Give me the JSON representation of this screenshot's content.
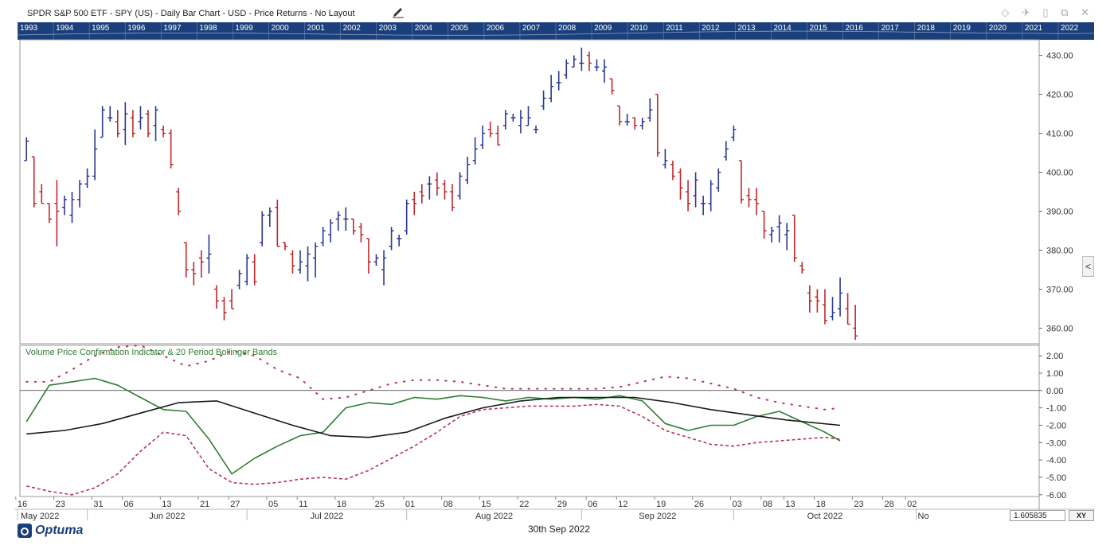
{
  "window": {
    "title": "SPDR S&P 500 ETF - SPY (US) - Daily Bar Chart - USD - Price Returns - No Layout",
    "controls": [
      "◇",
      "✈",
      "▯",
      "⧉",
      "✕"
    ]
  },
  "navigator": {
    "years": [
      "1993",
      "1994",
      "1995",
      "1996",
      "1997",
      "1998",
      "1999",
      "2000",
      "2001",
      "2002",
      "2003",
      "2004",
      "2005",
      "2006",
      "2007",
      "2008",
      "2009",
      "2010",
      "2011",
      "2012",
      "2013",
      "2014",
      "2015",
      "2016",
      "2017",
      "2018",
      "2019",
      "2020",
      "2021",
      "2022"
    ]
  },
  "chart_data": [
    {
      "type": "bar",
      "subtype": "ohlc",
      "title": "SPDR S&P 500 ETF - SPY (US) - Daily Bar Chart - USD - Price Returns - No Layout",
      "colors": {
        "up": "#2b3990",
        "down": "#c0282d"
      },
      "ylim": [
        356,
        434
      ],
      "y_ticks": [
        "430.00",
        "420.00",
        "410.00",
        "400.00",
        "390.00",
        "380.00",
        "370.00",
        "360.00"
      ],
      "y_tick_values": [
        430,
        420,
        410,
        400,
        390,
        380,
        370,
        360
      ],
      "grid": false,
      "bars": [
        [
          403,
          409,
          403,
          408
        ],
        [
          404,
          404,
          391,
          392
        ],
        [
          395,
          397,
          392,
          392
        ],
        [
          392,
          392,
          387,
          388
        ],
        [
          392,
          398,
          381,
          390
        ],
        [
          391,
          394,
          389,
          393
        ],
        [
          389,
          395,
          387,
          393
        ],
        [
          393,
          398,
          391,
          397
        ],
        [
          397,
          401,
          396,
          399
        ],
        [
          399,
          411,
          398,
          406
        ],
        [
          409,
          417,
          409,
          416
        ],
        [
          414,
          417,
          413,
          414
        ],
        [
          413,
          416,
          409,
          410
        ],
        [
          411,
          418,
          407,
          415
        ],
        [
          414,
          416,
          409,
          410
        ],
        [
          413,
          417,
          411,
          414
        ],
        [
          415,
          416,
          409,
          410
        ],
        [
          412,
          417,
          408,
          416
        ],
        [
          411,
          412,
          409,
          410
        ],
        [
          410,
          411,
          401,
          402
        ],
        [
          395,
          396,
          389,
          390
        ],
        [
          382,
          382,
          373,
          375
        ],
        [
          375,
          377,
          371,
          374
        ],
        [
          378,
          380,
          373,
          377
        ],
        [
          378,
          384,
          374,
          379
        ],
        [
          370,
          371,
          365,
          367
        ],
        [
          367,
          368,
          362,
          364
        ],
        [
          367,
          370,
          365,
          365
        ],
        [
          371,
          375,
          370,
          374
        ],
        [
          372,
          379,
          371,
          378
        ],
        [
          377,
          379,
          371,
          372
        ],
        [
          382,
          390,
          381,
          389
        ],
        [
          389,
          391,
          386,
          390
        ],
        [
          391,
          393,
          381,
          381
        ],
        [
          382,
          382,
          380,
          381
        ],
        [
          379,
          380,
          374,
          376
        ],
        [
          375,
          380,
          374,
          377
        ],
        [
          376,
          381,
          372,
          379
        ],
        [
          378,
          382,
          373,
          381
        ],
        [
          382,
          386,
          381,
          385
        ],
        [
          384,
          388,
          382,
          387
        ],
        [
          388,
          390,
          385,
          389
        ],
        [
          388,
          391,
          385,
          388
        ],
        [
          388,
          388,
          384,
          385
        ],
        [
          386,
          387,
          382,
          384
        ],
        [
          383,
          383,
          374,
          377
        ],
        [
          377,
          379,
          376,
          378
        ],
        [
          375,
          380,
          371,
          378
        ],
        [
          381,
          386,
          380,
          385
        ],
        [
          383,
          384,
          381,
          383
        ],
        [
          385,
          393,
          384,
          392
        ],
        [
          393,
          395,
          389,
          392
        ],
        [
          395,
          397,
          392,
          394
        ],
        [
          397,
          399,
          393,
          397
        ],
        [
          398,
          400,
          394,
          396
        ],
        [
          397,
          398,
          393,
          395
        ],
        [
          395,
          397,
          390,
          391
        ],
        [
          394,
          400,
          393,
          399
        ],
        [
          398,
          404,
          397,
          402
        ],
        [
          403,
          409,
          402,
          406
        ],
        [
          407,
          412,
          406,
          410
        ],
        [
          411,
          413,
          409,
          410
        ],
        [
          410,
          412,
          407,
          407
        ],
        [
          412,
          416,
          411,
          415
        ],
        [
          414,
          415,
          413,
          414
        ],
        [
          412,
          416,
          410,
          414
        ],
        [
          412,
          417,
          412,
          414
        ],
        [
          411,
          412,
          410,
          411
        ],
        [
          417,
          421,
          416,
          419
        ],
        [
          419,
          425,
          418,
          422
        ],
        [
          423,
          426,
          421,
          423
        ],
        [
          425,
          429,
          424,
          428
        ],
        [
          427,
          430,
          427,
          429
        ],
        [
          428,
          432,
          426,
          428
        ],
        [
          430,
          431,
          426,
          428
        ],
        [
          427,
          429,
          426,
          427
        ],
        [
          426,
          429,
          423,
          427
        ],
        [
          424,
          424,
          420,
          421
        ],
        [
          417,
          417,
          412,
          413
        ],
        [
          413,
          415,
          412,
          413
        ],
        [
          414,
          414,
          411,
          412
        ],
        [
          412,
          414,
          411,
          413
        ],
        [
          414,
          419,
          413,
          416
        ],
        [
          420,
          420,
          404,
          405
        ],
        [
          402,
          406,
          401,
          403
        ],
        [
          402,
          403,
          398,
          399
        ],
        [
          400,
          401,
          393,
          396
        ],
        [
          395,
          398,
          390,
          392
        ],
        [
          394,
          400,
          391,
          398
        ],
        [
          392,
          394,
          389,
          392
        ],
        [
          392,
          398,
          390,
          397
        ],
        [
          396,
          401,
          395,
          400
        ],
        [
          404,
          408,
          403,
          406
        ],
        [
          409,
          412,
          408,
          411
        ],
        [
          403,
          403,
          392,
          393
        ],
        [
          394,
          396,
          391,
          393
        ],
        [
          393,
          396,
          389,
          392
        ],
        [
          390,
          390,
          383,
          385
        ],
        [
          384,
          386,
          382,
          385
        ],
        [
          386,
          389,
          382,
          387
        ],
        [
          384,
          387,
          380,
          385
        ],
        [
          389,
          389,
          377,
          378
        ],
        [
          376,
          377,
          374,
          375
        ],
        [
          369,
          371,
          364,
          367
        ],
        [
          368,
          370,
          364,
          367
        ],
        [
          366,
          370,
          361,
          362
        ],
        [
          363,
          368,
          362,
          364
        ],
        [
          365,
          373,
          363,
          369
        ],
        [
          365,
          369,
          361,
          361
        ],
        [
          360,
          366,
          357,
          358
        ]
      ]
    },
    {
      "type": "line",
      "title": "Volume Price Confirmation Indicator & 20 Period Bollinger Bands",
      "ylim": [
        -6.1,
        2.6
      ],
      "y_ticks": [
        "2.00",
        "1.00",
        "0.00",
        "-1.00",
        "-2.00",
        "-3.00",
        "-4.00",
        "-5.00",
        "-6.00"
      ],
      "y_tick_values": [
        2,
        1,
        0,
        -1,
        -2,
        -3,
        -4,
        -5,
        -6
      ],
      "series": [
        {
          "color": "#2e7d32",
          "x": [
            0,
            3,
            6,
            9,
            12,
            15,
            18,
            21,
            24,
            27,
            30,
            33,
            36,
            39,
            42,
            45,
            48,
            51,
            54,
            57,
            60,
            63,
            66,
            69,
            72,
            75,
            78,
            81,
            84,
            87,
            90,
            93,
            96,
            99,
            102,
            105,
            107
          ],
          "values": [
            -1.8,
            0.3,
            0.5,
            0.7,
            0.3,
            -0.4,
            -1.1,
            -1.2,
            -2.8,
            -4.8,
            -3.9,
            -3.2,
            -2.6,
            -2.4,
            -1.0,
            -0.7,
            -0.8,
            -0.4,
            -0.5,
            -0.3,
            -0.4,
            -0.6,
            -0.4,
            -0.5,
            -0.4,
            -0.5,
            -0.3,
            -0.6,
            -1.9,
            -2.3,
            -2.0,
            -2.0,
            -1.5,
            -1.2,
            -1.8,
            -2.4,
            -2.9
          ]
        },
        {
          "color": "#1a1a1a",
          "x": [
            0,
            5,
            10,
            15,
            20,
            25,
            30,
            35,
            40,
            45,
            50,
            55,
            60,
            65,
            70,
            75,
            80,
            85,
            90,
            95,
            100,
            107
          ],
          "values": [
            -2.5,
            -2.3,
            -1.9,
            -1.3,
            -0.7,
            -0.6,
            -1.3,
            -2.0,
            -2.6,
            -2.7,
            -2.4,
            -1.6,
            -1.0,
            -0.6,
            -0.4,
            -0.4,
            -0.4,
            -0.7,
            -1.1,
            -1.4,
            -1.7,
            -2.0
          ]
        },
        {
          "color": "#b5395a",
          "style": "dashed",
          "x": [
            0,
            3,
            6,
            9,
            12,
            15,
            18,
            21,
            24,
            27,
            30,
            33,
            36,
            39,
            42,
            45,
            48,
            51,
            54,
            57,
            60,
            63,
            66,
            69,
            72,
            75,
            78,
            81,
            84,
            87,
            90,
            93,
            96,
            99,
            102,
            105,
            107
          ],
          "values": [
            -5.5,
            -5.8,
            -6.0,
            -5.6,
            -4.8,
            -3.5,
            -2.4,
            -2.6,
            -4.5,
            -5.3,
            -5.4,
            -5.3,
            -5.1,
            -5.0,
            -5.1,
            -4.6,
            -3.9,
            -3.2,
            -2.4,
            -1.5,
            -1.1,
            -1.0,
            -0.9,
            -0.9,
            -0.9,
            -0.8,
            -0.9,
            -1.5,
            -2.3,
            -2.7,
            -3.1,
            -3.2,
            -3.0,
            -2.9,
            -2.8,
            -2.7,
            -2.8
          ]
        },
        {
          "color": "#b5395a",
          "style": "dotted",
          "x": [
            0,
            3,
            6,
            9,
            12,
            15,
            18,
            21,
            24,
            27,
            30,
            33,
            36,
            39,
            42,
            45,
            48,
            51,
            54,
            57,
            60,
            63,
            66,
            69,
            72,
            75,
            78,
            81,
            84,
            87,
            90,
            93,
            96,
            99,
            102,
            105,
            107
          ],
          "values": [
            0.5,
            0.5,
            1.2,
            2.0,
            2.5,
            2.6,
            2.0,
            1.4,
            1.7,
            2.3,
            2.0,
            1.2,
            0.7,
            -0.5,
            -0.4,
            0.0,
            0.4,
            0.6,
            0.6,
            0.5,
            0.3,
            0.1,
            0.1,
            0.1,
            0.1,
            0.1,
            0.2,
            0.5,
            0.8,
            0.7,
            0.4,
            0.1,
            -0.4,
            -0.7,
            -0.9,
            -1.1,
            -1.0
          ]
        }
      ],
      "zero_line": 0
    }
  ],
  "x_axis": {
    "day_labels": [
      "16",
      "23",
      "31",
      "06",
      "13",
      "21",
      "27",
      "05",
      "11",
      "18",
      "25",
      "01",
      "08",
      "15",
      "22",
      "29",
      "06",
      "12",
      "19",
      "26",
      "03",
      "08",
      "13",
      "18",
      "23",
      "28",
      "02"
    ],
    "day_label_index": [
      -1.4,
      3.6,
      8.6,
      12.6,
      17.6,
      22.6,
      26.6,
      31.6,
      35.6,
      40.6,
      45.6,
      49.6,
      54.6,
      59.6,
      64.6,
      69.6,
      73.6,
      77.6,
      82.6,
      87.6,
      92.6,
      96.6,
      99.6,
      103.6,
      108.6,
      112.6,
      115.6
    ],
    "months": [
      "May 2022",
      "Jun 2022",
      "Jul 2022",
      "Aug 2022",
      "Sep 2022",
      "Oct 2022",
      "No"
    ],
    "month_start_index": [
      -2,
      8,
      29,
      50,
      73,
      93,
      117
    ]
  },
  "footer": {
    "logo": "Optuma",
    "date": "30th Sep 2022",
    "scale_value": "1.605835",
    "xy_label": "XY"
  }
}
